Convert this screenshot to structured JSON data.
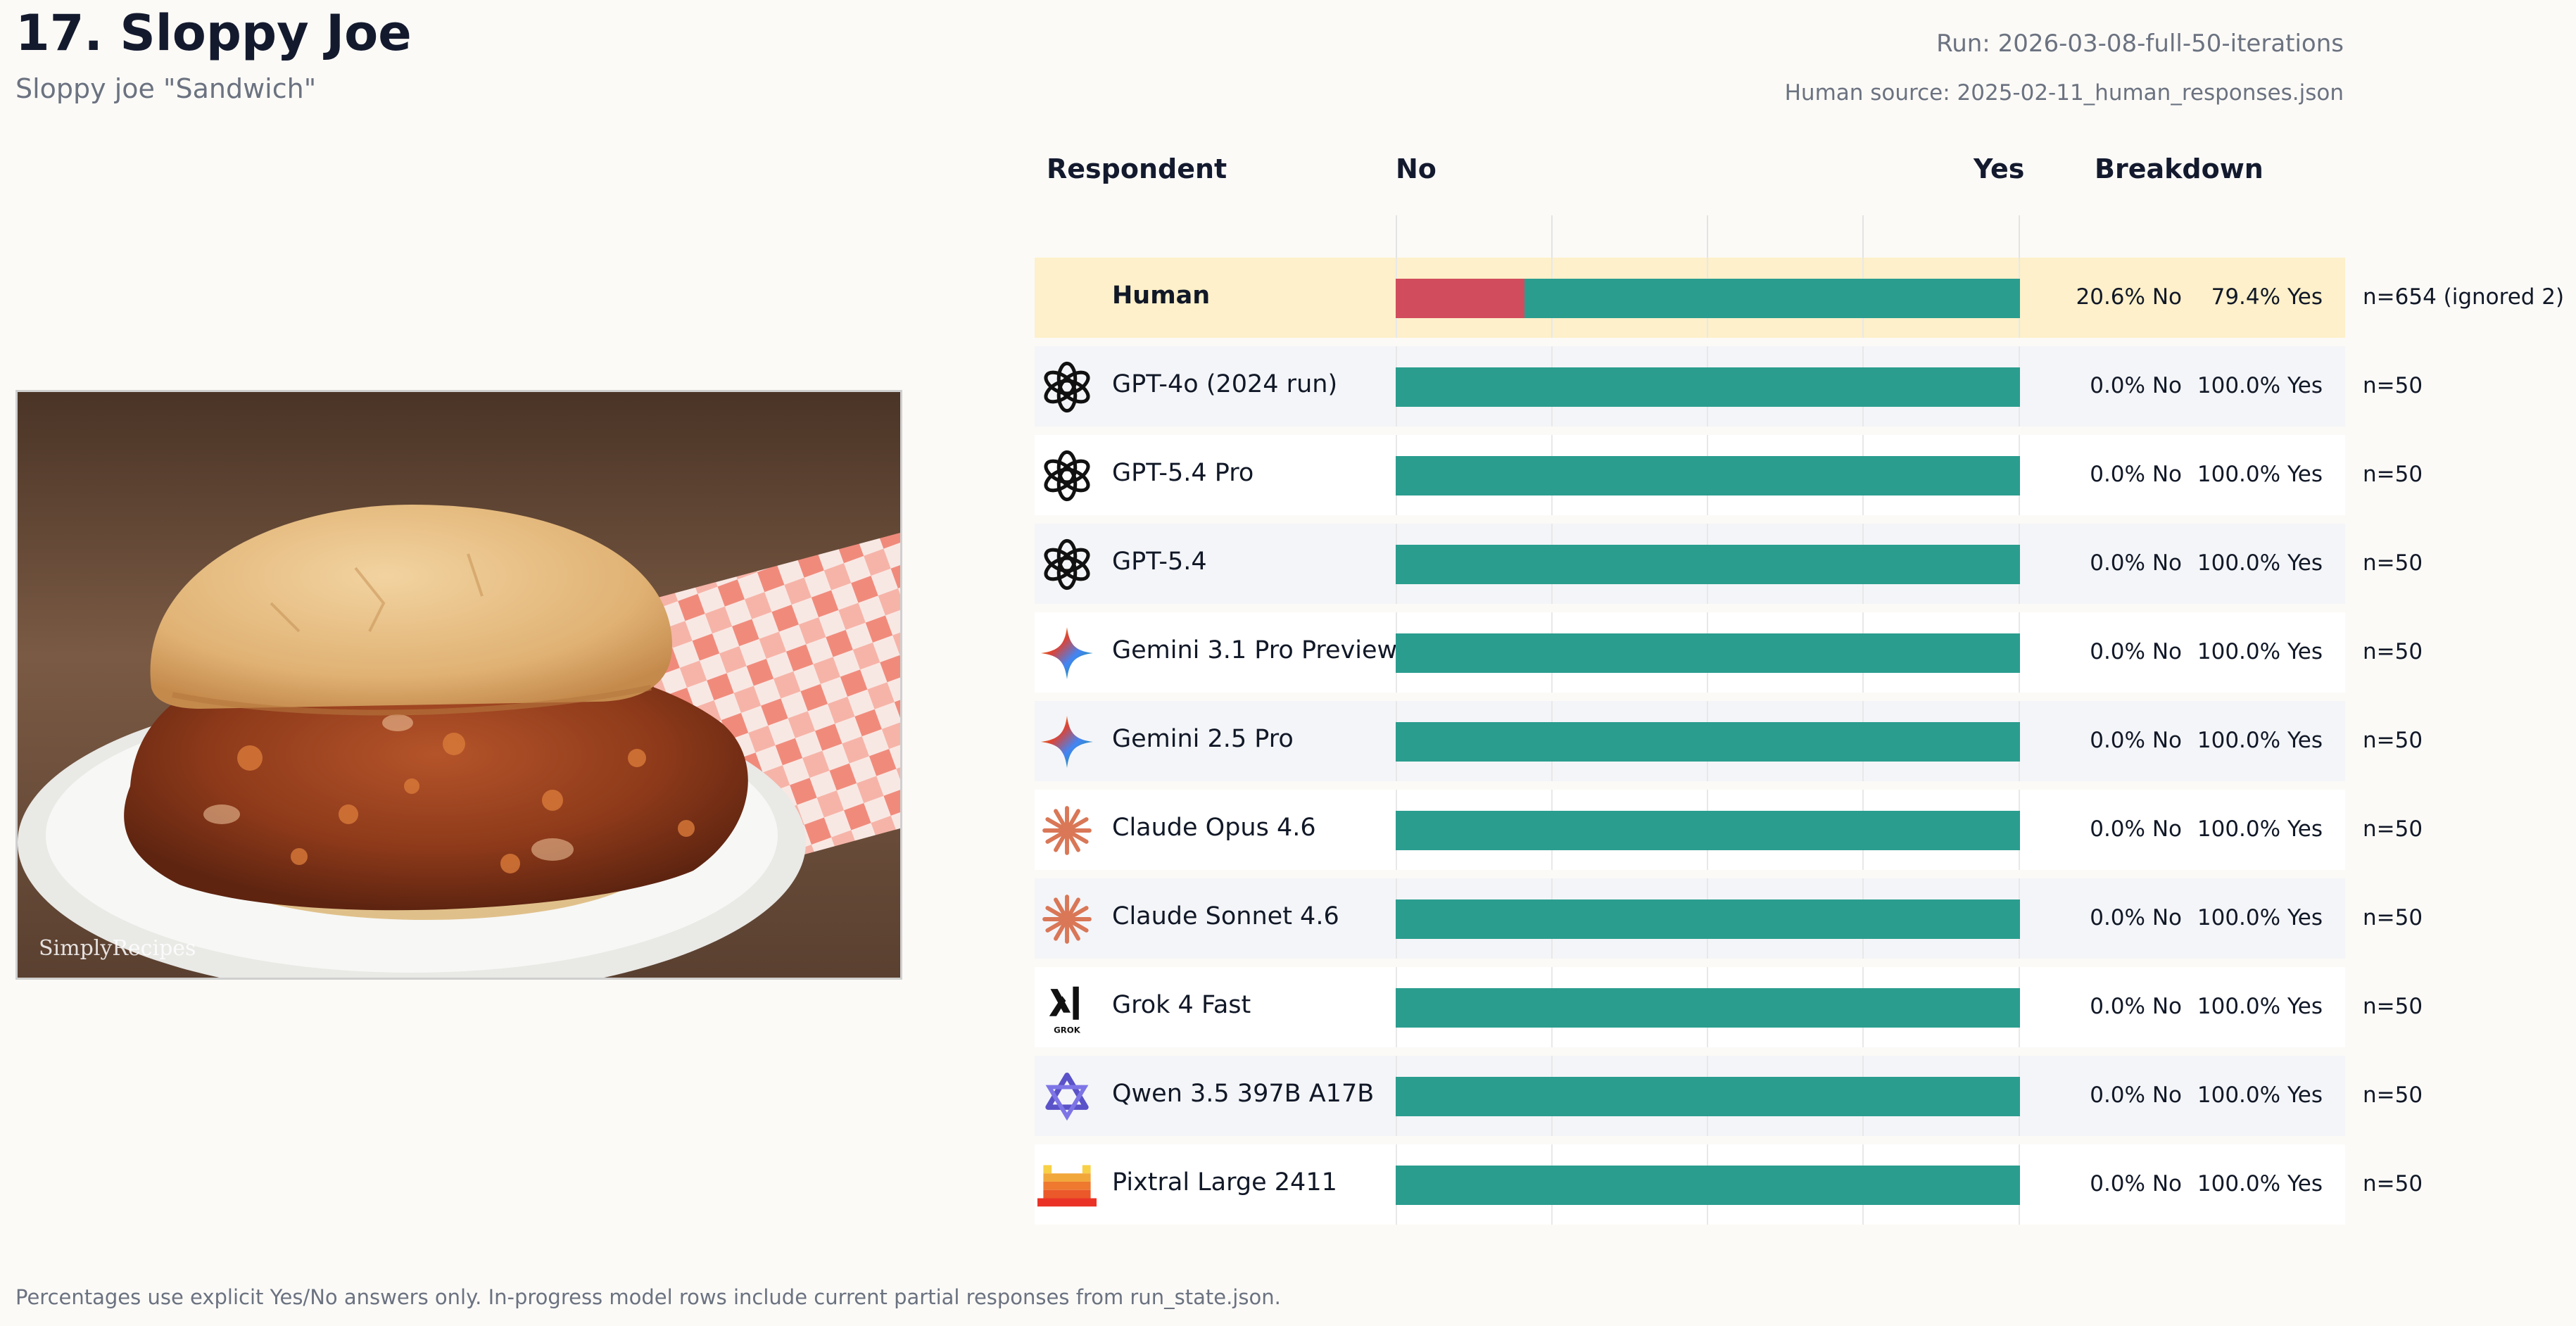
{
  "header": {
    "title": "17. Sloppy Joe",
    "subtitle": "Sloppy joe \"Sandwich\"",
    "run": "Run: 2026-03-08-full-50-iterations",
    "human_source": "Human source: 2025-02-11_human_responses.json"
  },
  "image": {
    "watermark": "SimplyRecipes"
  },
  "table": {
    "col_respondent": "Respondent",
    "col_no": "No",
    "col_yes": "Yes",
    "col_breakdown": "Breakdown"
  },
  "colors": {
    "no": "#d14d5d",
    "yes": "#2a9d8f",
    "human_highlight": "#fdf0ca"
  },
  "rows": [
    {
      "name": "Human",
      "icon": "none",
      "no_fraction": 0.206,
      "no_text": "20.6% No",
      "yes_text": "79.4% Yes",
      "n_text": "n=654 (ignored 2)"
    },
    {
      "name": "GPT-4o (2024 run)",
      "icon": "openai-icon",
      "no_fraction": 0,
      "no_text": "0.0% No",
      "yes_text": "100.0% Yes",
      "n_text": "n=50"
    },
    {
      "name": "GPT-5.4 Pro",
      "icon": "openai-icon",
      "no_fraction": 0,
      "no_text": "0.0% No",
      "yes_text": "100.0% Yes",
      "n_text": "n=50"
    },
    {
      "name": "GPT-5.4",
      "icon": "openai-icon",
      "no_fraction": 0,
      "no_text": "0.0% No",
      "yes_text": "100.0% Yes",
      "n_text": "n=50"
    },
    {
      "name": "Gemini 3.1 Pro Preview",
      "icon": "gemini-icon",
      "no_fraction": 0,
      "no_text": "0.0% No",
      "yes_text": "100.0% Yes",
      "n_text": "n=50"
    },
    {
      "name": "Gemini 2.5 Pro",
      "icon": "gemini-icon",
      "no_fraction": 0,
      "no_text": "0.0% No",
      "yes_text": "100.0% Yes",
      "n_text": "n=50"
    },
    {
      "name": "Claude Opus 4.6",
      "icon": "claude-icon",
      "no_fraction": 0,
      "no_text": "0.0% No",
      "yes_text": "100.0% Yes",
      "n_text": "n=50"
    },
    {
      "name": "Claude Sonnet 4.6",
      "icon": "claude-icon",
      "no_fraction": 0,
      "no_text": "0.0% No",
      "yes_text": "100.0% Yes",
      "n_text": "n=50"
    },
    {
      "name": "Grok 4 Fast",
      "icon": "grok-icon",
      "no_fraction": 0,
      "no_text": "0.0% No",
      "yes_text": "100.0% Yes",
      "n_text": "n=50"
    },
    {
      "name": "Qwen 3.5 397B A17B",
      "icon": "qwen-icon",
      "no_fraction": 0,
      "no_text": "0.0% No",
      "yes_text": "100.0% Yes",
      "n_text": "n=50"
    },
    {
      "name": "Pixtral Large 2411",
      "icon": "mistral-icon",
      "no_fraction": 0,
      "no_text": "0.0% No",
      "yes_text": "100.0% Yes",
      "n_text": "n=50"
    }
  ],
  "footnote": "Percentages use explicit Yes/No answers only. In-progress model rows include current partial responses from run_state.json."
}
